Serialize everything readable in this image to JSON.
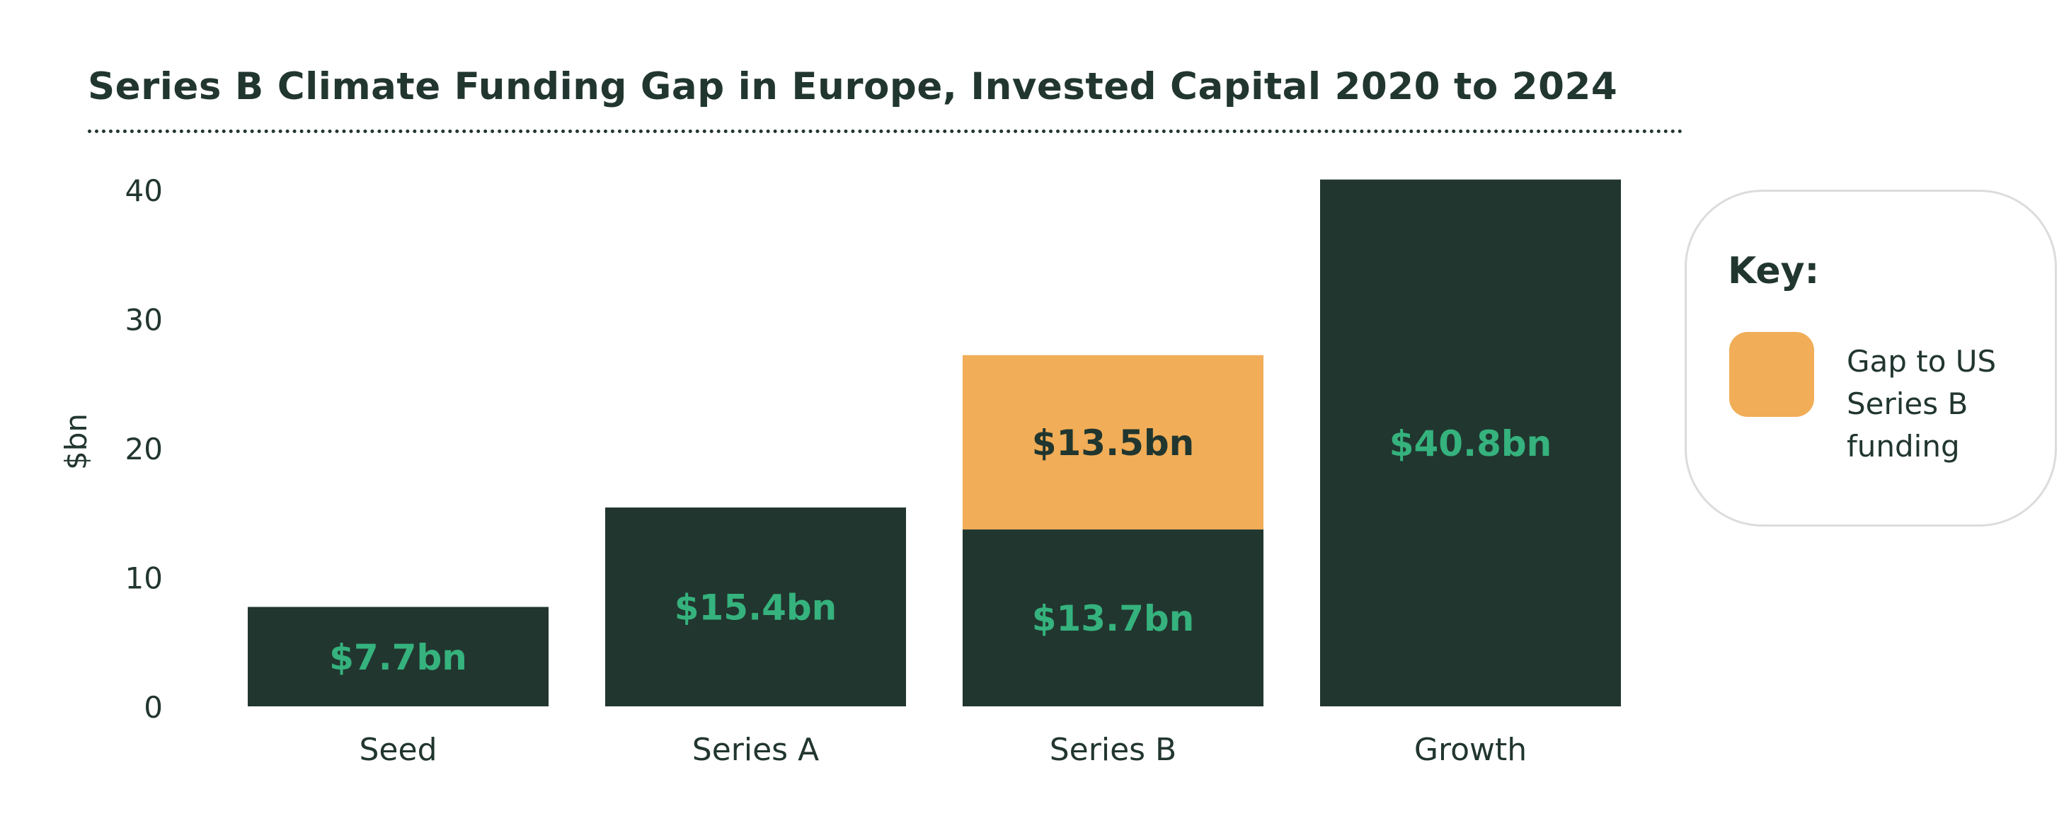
{
  "title": "Series B Climate Funding Gap in Europe, Invested Capital 2020 to 2024",
  "colors": {
    "base": "#21362f",
    "gap": "#f1ad57",
    "label_on_dark": "#35b27d",
    "label_on_gap": "#21362f",
    "text": "#21362f"
  },
  "key": {
    "title": "Key:",
    "label": "Gap to US Series B funding"
  },
  "chart_data": {
    "type": "bar",
    "stacked": true,
    "categories": [
      "Seed",
      "Series A",
      "Series B",
      "Growth"
    ],
    "series": [
      {
        "name": "",
        "values": [
          7.7,
          15.4,
          13.7,
          40.8
        ],
        "labels": [
          "$7.7bn",
          "$15.4bn",
          "$13.7bn",
          "$40.8bn"
        ]
      },
      {
        "name": "Gap to US Series B funding",
        "values": [
          0,
          0,
          13.5,
          0
        ],
        "labels": [
          "",
          "",
          "$13.5bn",
          ""
        ]
      }
    ],
    "ylabel": "$bn",
    "ylim": [
      0,
      41
    ],
    "yticks": [
      0,
      10,
      20,
      30,
      40
    ],
    "grid": false,
    "legend": "right"
  }
}
